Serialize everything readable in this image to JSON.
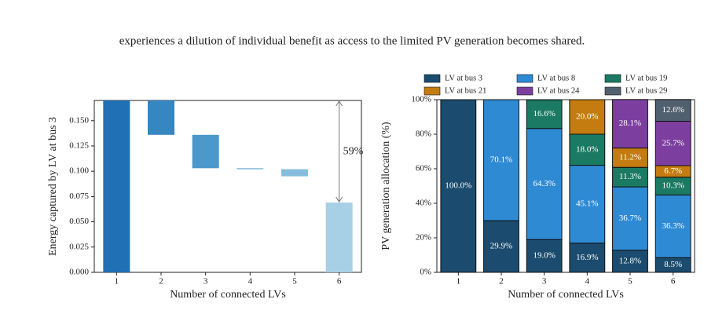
{
  "text": "experiences a dilution of individual benefit as access to the limited PV generation becomes shared.",
  "chart_data": [
    {
      "type": "waterfall",
      "ylabel": "Energy captured by LV at bus 3",
      "xlabel": "Number of connected LVs",
      "categories": [
        "1",
        "2",
        "3",
        "4",
        "5",
        "6"
      ],
      "values": [
        0.17,
        0.136,
        0.103,
        0.102,
        0.095,
        0.069
      ],
      "totals": [
        true,
        false,
        false,
        false,
        false,
        true
      ],
      "colors": [
        "#1f70b5",
        "#3686c2",
        "#4b98ca",
        "#6caed7",
        "#86bddd",
        "#a7cfe5"
      ],
      "ylim": [
        0,
        0.17
      ],
      "yticks": [
        {
          "value": 0,
          "label": "0.000"
        },
        {
          "value": 0.025,
          "label": "0.025"
        },
        {
          "value": 0.05,
          "label": "0.050"
        },
        {
          "value": 0.075,
          "label": "0.075"
        },
        {
          "value": 0.1,
          "label": "0.100"
        },
        {
          "value": 0.125,
          "label": "0.125"
        },
        {
          "value": 0.15,
          "label": "0.150"
        }
      ],
      "annotation": "59%"
    },
    {
      "type": "bar",
      "stacked": true,
      "ylabel": "PV generation allocation (%)",
      "xlabel": "Number of connected LVs",
      "categories": [
        "1",
        "2",
        "3",
        "4",
        "5",
        "6"
      ],
      "ylim": [
        0,
        100
      ],
      "yticks": [
        {
          "value": 0,
          "label": "0%"
        },
        {
          "value": 20,
          "label": "20%"
        },
        {
          "value": 40,
          "label": "40%"
        },
        {
          "value": 60,
          "label": "60%"
        },
        {
          "value": 80,
          "label": "80%"
        },
        {
          "value": 100,
          "label": "100%"
        }
      ],
      "legend": "top",
      "legend_columns": 3,
      "series": [
        {
          "name": "LV at bus 3",
          "color": "#1b4c6f",
          "values": [
            100.0,
            29.9,
            19.0,
            16.9,
            12.8,
            8.5
          ],
          "value_labels": [
            "100.0%",
            "29.9%",
            "19.0%",
            "16.9%",
            "12.8%",
            "8.5%"
          ]
        },
        {
          "name": "LV at bus 8",
          "color": "#2f8ad4",
          "values": [
            null,
            70.1,
            64.3,
            45.1,
            36.7,
            36.3
          ],
          "value_labels": [
            null,
            "70.1%",
            "64.3%",
            "45.1%",
            "36.7%",
            "36.3%"
          ]
        },
        {
          "name": "LV at bus 19",
          "color": "#1a7a63",
          "values": [
            null,
            null,
            16.6,
            18.0,
            11.3,
            10.3
          ],
          "value_labels": [
            null,
            null,
            "16.6%",
            "18.0%",
            "11.3%",
            "10.3%"
          ]
        },
        {
          "name": "LV at bus 21",
          "color": "#c47c10",
          "values": [
            null,
            null,
            null,
            20.0,
            11.2,
            6.7
          ],
          "value_labels": [
            null,
            null,
            null,
            "20.0%",
            "11.2%",
            "6.7%"
          ]
        },
        {
          "name": "LV at bus 24",
          "color": "#7c3f9f",
          "values": [
            null,
            null,
            null,
            null,
            28.1,
            25.7
          ],
          "value_labels": [
            null,
            null,
            null,
            null,
            "28.1%",
            "25.7%"
          ]
        },
        {
          "name": "LV at bus 29",
          "color": "#51606f",
          "values": [
            null,
            null,
            null,
            null,
            null,
            12.6
          ],
          "value_labels": [
            null,
            null,
            null,
            null,
            null,
            "12.6%"
          ]
        }
      ]
    }
  ]
}
